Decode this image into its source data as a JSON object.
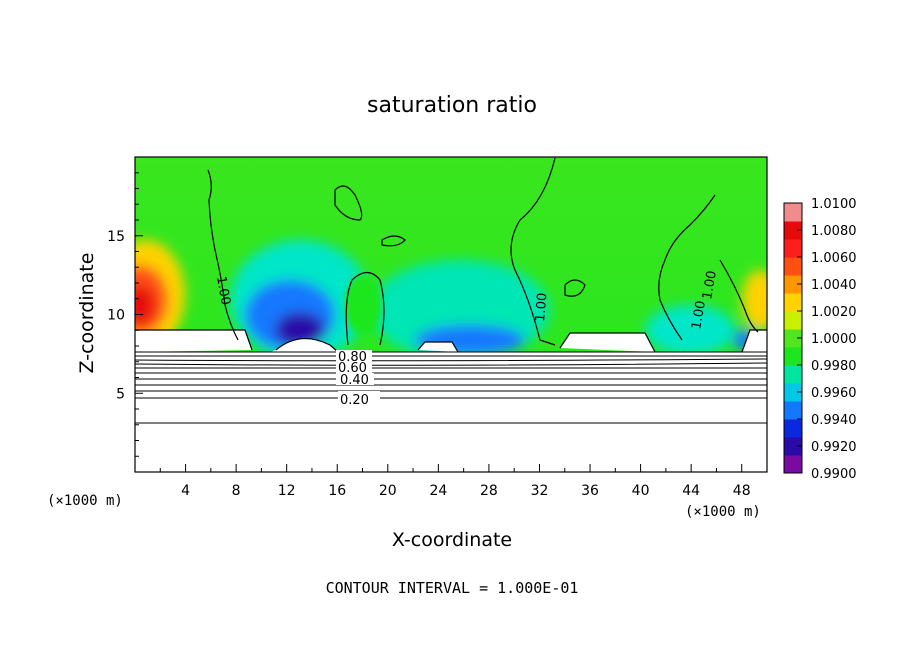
{
  "chart_data": {
    "type": "heatmap",
    "title": "saturation ratio",
    "xlabel": "X-coordinate",
    "ylabel": "Z-coordinate",
    "x_unit": "(×1000 m)",
    "z_unit": "(×1000 m)",
    "xlim": [
      0,
      50
    ],
    "ylim": [
      0,
      20
    ],
    "x_ticks": [
      "4",
      "8",
      "12",
      "16",
      "20",
      "24",
      "28",
      "32",
      "36",
      "40",
      "44",
      "48"
    ],
    "y_ticks": [
      "5",
      "10",
      "15"
    ],
    "colorbar": {
      "min": 0.99,
      "max": 1.01,
      "labels": [
        "1.0100",
        "1.0080",
        "1.0060",
        "1.0040",
        "1.0020",
        "1.0000",
        "0.9980",
        "0.9960",
        "0.9940",
        "0.9920",
        "0.9900"
      ],
      "colors": [
        "#7a0aa0",
        "#2a0aa8",
        "#0a28e0",
        "#1478ff",
        "#00c8e6",
        "#00e6a0",
        "#1ee61e",
        "#52e61e",
        "#c8f000",
        "#ffd200",
        "#ff9600",
        "#ff5014",
        "#ff1e1e",
        "#e60a0a",
        "#f08c8c"
      ]
    },
    "contour_labels": [
      "0.80",
      "0.60",
      "0.40",
      "0.20",
      "1.00",
      "1.00",
      "1.00",
      "1.00"
    ],
    "footer": "CONTOUR INTERVAL = 1.000E-01"
  }
}
